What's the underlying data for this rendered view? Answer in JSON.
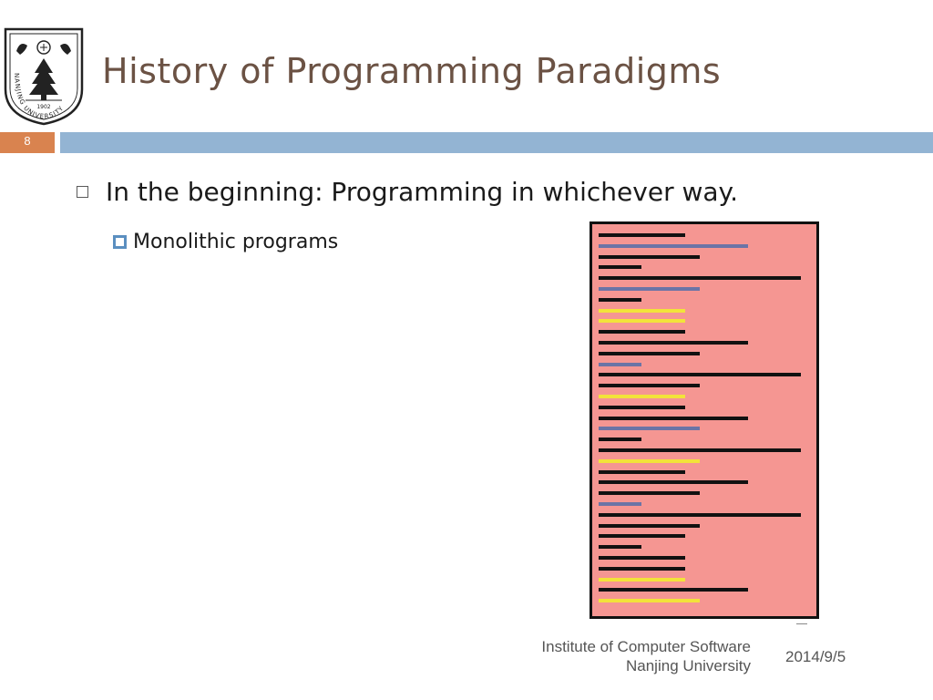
{
  "title": "History of Programming Paradigms",
  "slide_number": "8",
  "bullets": {
    "level1": "In the beginning: Programming in whichever way.",
    "level2": "Monolithic programs"
  },
  "logo": {
    "ring_text": "NANJING UNIVERSITY",
    "year": "1902"
  },
  "footer": {
    "institute_line1": "Institute of Computer Software",
    "institute_line2": "Nanjing University",
    "date": "2014/9/5"
  },
  "colors": {
    "title": "#6b5244",
    "accent_bar": "#93b4d3",
    "slide_number_bg": "#d9834f",
    "program_bg": "#f59692",
    "code_black": "#111111",
    "code_blue": "#6b74a6",
    "code_yellow": "#f2e33a"
  },
  "program_figure": {
    "lines": [
      {
        "color": "black",
        "length": 0.43
      },
      {
        "color": "blue",
        "length": 0.74
      },
      {
        "color": "black",
        "length": 0.5
      },
      {
        "color": "black",
        "length": 0.21
      },
      {
        "color": "black",
        "length": 1.0
      },
      {
        "color": "blue",
        "length": 0.5
      },
      {
        "color": "black",
        "length": 0.21
      },
      {
        "color": "yellow",
        "length": 0.43
      },
      {
        "color": "yellow",
        "length": 0.43
      },
      {
        "color": "black",
        "length": 0.43
      },
      {
        "color": "black",
        "length": 0.74
      },
      {
        "color": "black",
        "length": 0.5
      },
      {
        "color": "blue",
        "length": 0.21
      },
      {
        "color": "black",
        "length": 1.0
      },
      {
        "color": "black",
        "length": 0.5
      },
      {
        "color": "yellow",
        "length": 0.43
      },
      {
        "color": "black",
        "length": 0.43
      },
      {
        "color": "black",
        "length": 0.74
      },
      {
        "color": "blue",
        "length": 0.5
      },
      {
        "color": "black",
        "length": 0.21
      },
      {
        "color": "black",
        "length": 1.0
      },
      {
        "color": "yellow",
        "length": 0.5
      },
      {
        "color": "black",
        "length": 0.43
      },
      {
        "color": "black",
        "length": 0.74
      },
      {
        "color": "black",
        "length": 0.5
      },
      {
        "color": "blue",
        "length": 0.21
      },
      {
        "color": "black",
        "length": 1.0
      },
      {
        "color": "black",
        "length": 0.5
      },
      {
        "color": "black",
        "length": 0.43
      },
      {
        "color": "black",
        "length": 0.21
      },
      {
        "color": "black",
        "length": 0.43
      },
      {
        "color": "black",
        "length": 0.43
      },
      {
        "color": "yellow",
        "length": 0.43
      },
      {
        "color": "black",
        "length": 0.74
      },
      {
        "color": "yellow",
        "length": 0.5
      }
    ]
  }
}
